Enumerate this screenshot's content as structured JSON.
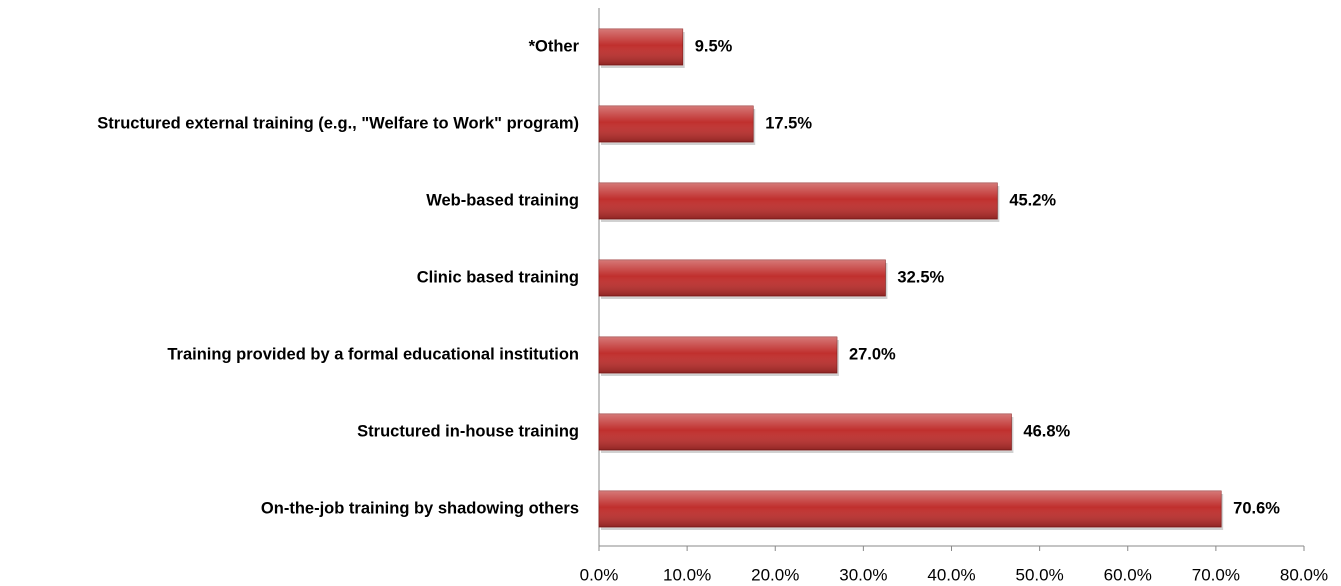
{
  "chart_data": {
    "type": "bar",
    "orientation": "horizontal",
    "categories": [
      "*Other",
      "Structured external training (e.g., \"Welfare to Work\" program)",
      "Web-based training",
      "Clinic based training",
      "Training provided by a formal educational institution",
      "Structured in-house training",
      "On-the-job training by shadowing others"
    ],
    "values": [
      9.5,
      17.5,
      45.2,
      32.5,
      27.0,
      46.8,
      70.6
    ],
    "value_labels": [
      "9.5%",
      "17.5%",
      "45.2%",
      "32.5%",
      "27.0%",
      "46.8%",
      "70.6%"
    ],
    "color": "#c0302e",
    "xlim": [
      0,
      80
    ],
    "xticks": [
      {
        "value": 0,
        "label": "0.0%"
      },
      {
        "value": 10,
        "label": "10.0%"
      },
      {
        "value": 20,
        "label": "20.0%"
      },
      {
        "value": 30,
        "label": "30.0%"
      },
      {
        "value": 40,
        "label": "40.0%"
      },
      {
        "value": 50,
        "label": "50.0%"
      },
      {
        "value": 60,
        "label": "60.0%"
      },
      {
        "value": 70,
        "label": "70.0%"
      },
      {
        "value": 80,
        "label": "80.0%"
      }
    ],
    "grid": false
  }
}
